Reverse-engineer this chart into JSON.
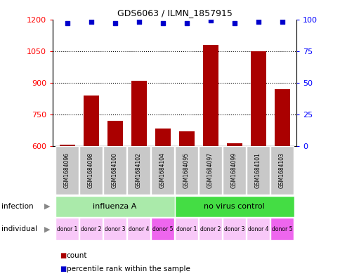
{
  "title": "GDS6063 / ILMN_1857915",
  "samples": [
    "GSM1684096",
    "GSM1684098",
    "GSM1684100",
    "GSM1684102",
    "GSM1684104",
    "GSM1684095",
    "GSM1684097",
    "GSM1684099",
    "GSM1684101",
    "GSM1684103"
  ],
  "counts": [
    607,
    840,
    720,
    910,
    685,
    672,
    1080,
    615,
    1050,
    870
  ],
  "percentile_ranks": [
    97,
    98,
    97,
    98,
    97,
    97,
    99,
    97,
    98,
    98
  ],
  "ylim_left": [
    600,
    1200
  ],
  "ylim_right": [
    0,
    100
  ],
  "yticks_left": [
    600,
    750,
    900,
    1050,
    1200
  ],
  "yticks_right": [
    0,
    25,
    50,
    75,
    100
  ],
  "infection_groups": [
    {
      "label": "influenza A",
      "start": 0,
      "end": 5,
      "color": "#AAEAAA"
    },
    {
      "label": "no virus control",
      "start": 5,
      "end": 10,
      "color": "#44DD44"
    }
  ],
  "donors": [
    "donor 1",
    "donor 2",
    "donor 3",
    "donor 4",
    "donor 5",
    "donor 1",
    "donor 2",
    "donor 3",
    "donor 4",
    "donor 5"
  ],
  "donor_colors": [
    "#F8C8F8",
    "#F8C8F8",
    "#F8C8F8",
    "#F8C8F8",
    "#EE66EE",
    "#F8C8F8",
    "#F8C8F8",
    "#F8C8F8",
    "#F8C8F8",
    "#EE66EE"
  ],
  "bar_color": "#AA0000",
  "dot_color": "#0000CC",
  "sample_box_color": "#C8C8C8",
  "bg_color": "#FFFFFF",
  "left_label_color": "#888888"
}
